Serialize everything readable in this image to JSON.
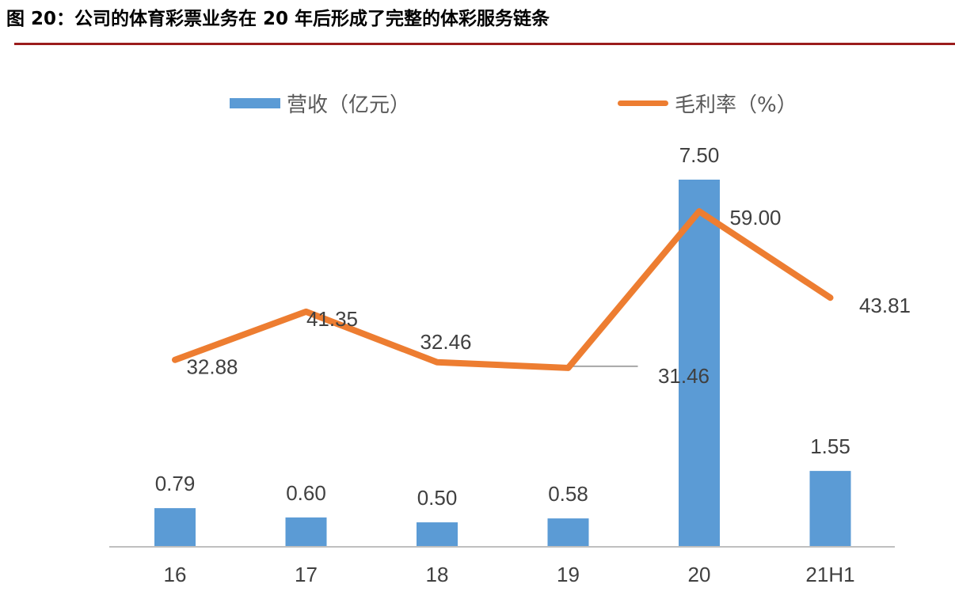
{
  "figure": {
    "title": "图 20：公司的体育彩票业务在 20 年后形成了完整的体彩服务链条"
  },
  "chart_data": {
    "type": "bar",
    "categories": [
      "16",
      "17",
      "18",
      "19",
      "20",
      "21H1"
    ],
    "series": [
      {
        "name": "营收（亿元）",
        "type": "bar",
        "axis": "left",
        "color": "#5b9bd5",
        "values": [
          0.79,
          0.6,
          0.5,
          0.58,
          7.5,
          1.55
        ],
        "labels": [
          "0.79",
          "0.60",
          "0.50",
          "0.58",
          "7.50",
          "1.55"
        ]
      },
      {
        "name": "毛利率（%）",
        "type": "line",
        "axis": "right",
        "color": "#ed7d31",
        "values": [
          32.88,
          41.35,
          32.46,
          31.46,
          59.0,
          43.81
        ],
        "labels": [
          "32.88",
          "41.35",
          "32.46",
          "31.46",
          "59.00",
          "43.81"
        ]
      }
    ],
    "title": "",
    "xlabel": "",
    "ylabel": "",
    "ylim_left": [
      0,
      7.5
    ],
    "ylim_right": [
      0,
      70
    ],
    "grid": false,
    "legend": "top"
  }
}
